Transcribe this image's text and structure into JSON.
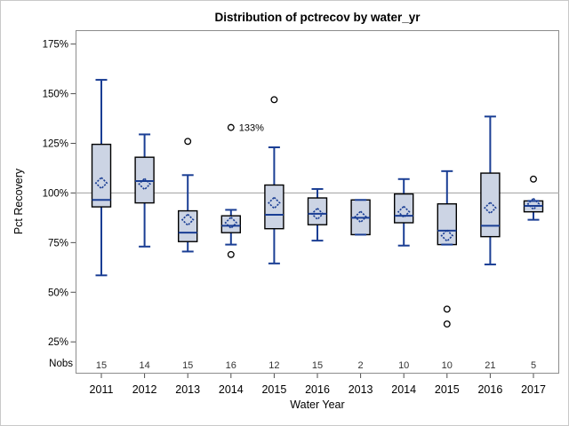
{
  "chart_data": {
    "type": "boxplot",
    "title": "Distribution of pctrecov by water_yr",
    "xlabel": "Water Year",
    "ylabel": "Pct Recovery",
    "nobs_header": "Nobs",
    "ylim": [
      9,
      182
    ],
    "refline": 100,
    "grid": "off",
    "y_ticks": [
      {
        "value": 175,
        "label": "175%"
      },
      {
        "value": 150,
        "label": "150%"
      },
      {
        "value": 125,
        "label": "125%"
      },
      {
        "value": 100,
        "label": "100%"
      },
      {
        "value": 75,
        "label": "75%"
      },
      {
        "value": 50,
        "label": "50%"
      },
      {
        "value": 25,
        "label": "25%"
      }
    ],
    "boxes": [
      {
        "category": "2011",
        "nobs": "15",
        "low": 58.5,
        "q1": 93,
        "median": 96.5,
        "q3": 124.5,
        "high": 157,
        "mean": 105,
        "outliers": []
      },
      {
        "category": "2012",
        "nobs": "14",
        "low": 73,
        "q1": 95,
        "median": 106,
        "q3": 118,
        "high": 129.5,
        "mean": 104.5,
        "outliers": []
      },
      {
        "category": "2013",
        "nobs": "15",
        "low": 70.5,
        "q1": 75.5,
        "median": 80,
        "q3": 91,
        "high": 109,
        "mean": 86.5,
        "outliers": [
          126
        ]
      },
      {
        "category": "2014",
        "nobs": "16",
        "low": 74,
        "q1": 80,
        "median": 83.5,
        "q3": 88.5,
        "high": 91.5,
        "mean": 85,
        "outliers": [
          133,
          69
        ],
        "outlier_label": {
          "value": 133,
          "text": "133%"
        }
      },
      {
        "category": "2015",
        "nobs": "12",
        "low": 64.5,
        "q1": 82,
        "median": 89,
        "q3": 104,
        "high": 123,
        "mean": 95,
        "outliers": [
          147
        ]
      },
      {
        "category": "2016",
        "nobs": "15",
        "low": 76,
        "q1": 84,
        "median": 89.5,
        "q3": 97.5,
        "high": 102,
        "mean": 89.5,
        "outliers": []
      },
      {
        "category": "2013",
        "nobs": "2",
        "low": 79,
        "q1": 79,
        "median": 87.5,
        "q3": 96.5,
        "high": 96.5,
        "mean": 88,
        "outliers": []
      },
      {
        "category": "2014",
        "nobs": "10",
        "low": 73.5,
        "q1": 85,
        "median": 88.5,
        "q3": 99.5,
        "high": 107,
        "mean": 90.5,
        "outliers": []
      },
      {
        "category": "2015",
        "nobs": "10",
        "low": 74,
        "q1": 74,
        "median": 81,
        "q3": 94.5,
        "high": 111,
        "mean": 78.5,
        "outliers": [
          41.5,
          34
        ]
      },
      {
        "category": "2016",
        "nobs": "21",
        "low": 64,
        "q1": 78,
        "median": 83.5,
        "q3": 110,
        "high": 138.5,
        "mean": 92.5,
        "outliers": []
      },
      {
        "category": "2017",
        "nobs": "5",
        "low": 86.5,
        "q1": 90.5,
        "median": 93.5,
        "q3": 96,
        "high": 96,
        "mean": 94.5,
        "outliers": [
          107
        ]
      }
    ]
  },
  "colors": {
    "box_fill": "#ccd4e4",
    "box_border": "#000000",
    "line_blue": "#1a3e94",
    "reference_line": "#aaaaaa",
    "frame": "#8c8c8c",
    "outlier": "#000000",
    "tick": "#4d4d4d",
    "text": "#000000",
    "nobs_text": "#333333",
    "background": "#ffffff"
  }
}
